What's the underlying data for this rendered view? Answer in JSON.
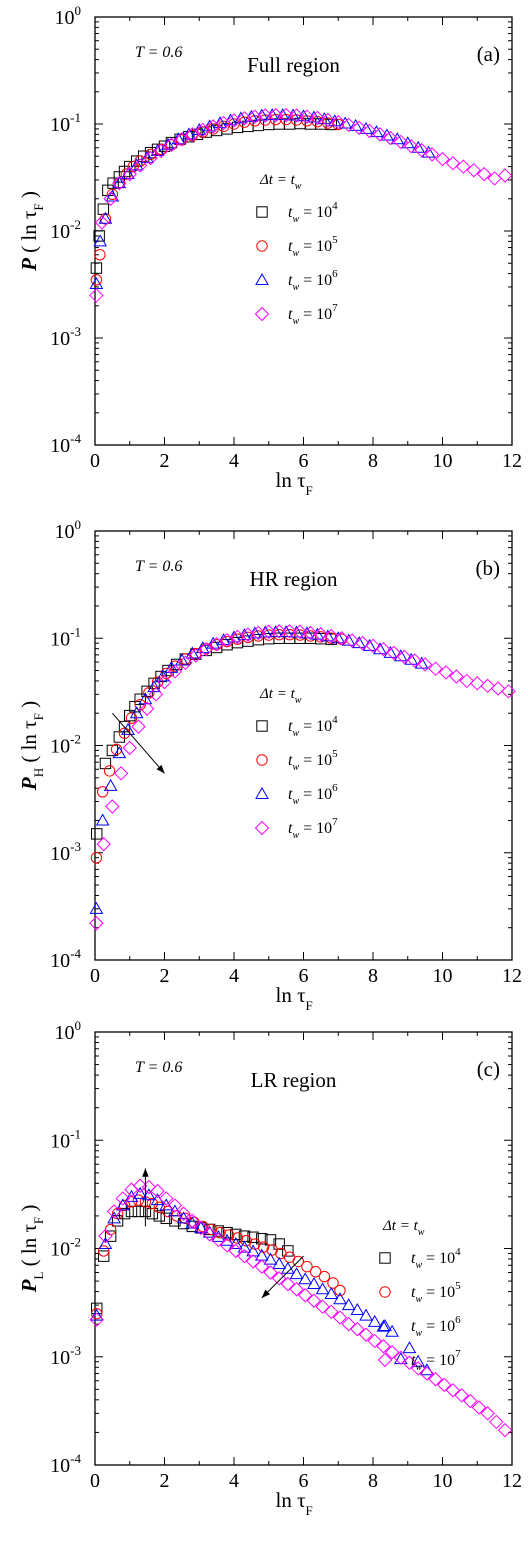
{
  "chart_data": [
    {
      "type": "scatter",
      "panel": "(a)",
      "title": "Full region",
      "temperature": "T = 0.6",
      "xlabel": "ln τF",
      "ylabel": "P ( ln τF )",
      "yscale": "log",
      "xlim": [
        0,
        12
      ],
      "ylim": [
        0.0001,
        1
      ],
      "xticks": [
        0,
        2,
        4,
        6,
        8,
        10,
        12
      ],
      "yticks": [
        0.0001,
        0.001,
        0.01,
        0.1,
        1
      ],
      "legend_title": "Δt = tw",
      "legend_position": "middle",
      "series": [
        {
          "name": "tw = 10^4",
          "marker": "square",
          "color": "#000000",
          "x": [
            0.04,
            0.12,
            0.24,
            0.37,
            0.52,
            0.7,
            0.85,
            1.0,
            1.2,
            1.4,
            1.6,
            1.8,
            2.0,
            2.2,
            2.45,
            2.7,
            2.95,
            3.2,
            3.5,
            3.8,
            4.1,
            4.4,
            4.7,
            5.0,
            5.3,
            5.6,
            5.9,
            6.2,
            6.5,
            6.8
          ],
          "y": [
            0.0045,
            0.009,
            0.016,
            0.024,
            0.028,
            0.032,
            0.036,
            0.04,
            0.045,
            0.05,
            0.054,
            0.058,
            0.062,
            0.067,
            0.072,
            0.076,
            0.08,
            0.084,
            0.087,
            0.09,
            0.093,
            0.095,
            0.097,
            0.099,
            0.1,
            0.1,
            0.101,
            0.1,
            0.1,
            0.099
          ]
        },
        {
          "name": "tw = 10^5",
          "marker": "circle",
          "color": "#ff0000",
          "x": [
            0.04,
            0.14,
            0.3,
            0.5,
            0.7,
            0.9,
            1.1,
            1.3,
            1.6,
            1.9,
            2.2,
            2.5,
            2.8,
            3.1,
            3.4,
            3.7,
            4.0,
            4.3,
            4.6,
            4.9,
            5.2,
            5.5,
            5.8,
            6.1,
            6.4,
            6.7,
            7.0
          ],
          "y": [
            0.0035,
            0.006,
            0.013,
            0.022,
            0.028,
            0.034,
            0.04,
            0.045,
            0.052,
            0.058,
            0.064,
            0.071,
            0.078,
            0.084,
            0.09,
            0.095,
            0.1,
            0.104,
            0.107,
            0.109,
            0.11,
            0.11,
            0.109,
            0.107,
            0.105,
            0.102,
            0.099
          ]
        },
        {
          "name": "tw = 10^6",
          "marker": "triangle",
          "color": "#0000ff",
          "x": [
            0.04,
            0.15,
            0.3,
            0.5,
            0.7,
            0.95,
            1.2,
            1.5,
            1.8,
            2.1,
            2.4,
            2.7,
            3.0,
            3.3,
            3.6,
            3.9,
            4.2,
            4.5,
            4.8,
            5.1,
            5.4,
            5.7,
            6.0,
            6.3,
            6.6,
            6.9,
            7.2,
            7.5,
            7.8,
            8.1,
            8.4,
            8.7,
            9.0,
            9.3,
            9.6
          ],
          "y": [
            0.0032,
            0.008,
            0.013,
            0.021,
            0.028,
            0.034,
            0.041,
            0.048,
            0.056,
            0.064,
            0.072,
            0.08,
            0.088,
            0.095,
            0.102,
            0.108,
            0.113,
            0.117,
            0.12,
            0.121,
            0.121,
            0.12,
            0.118,
            0.115,
            0.111,
            0.106,
            0.101,
            0.096,
            0.09,
            0.084,
            0.078,
            0.072,
            0.066,
            0.06,
            0.054
          ]
        },
        {
          "name": "tw = 10^7",
          "marker": "diamond",
          "color": "#ff00ff",
          "x": [
            0.04,
            0.2,
            0.45,
            0.7,
            1.0,
            1.3,
            1.6,
            1.9,
            2.2,
            2.5,
            2.8,
            3.1,
            3.4,
            3.7,
            4.0,
            4.3,
            4.6,
            4.9,
            5.2,
            5.5,
            5.8,
            6.1,
            6.4,
            6.7,
            7.0,
            7.3,
            7.6,
            7.9,
            8.2,
            8.5,
            8.8,
            9.1,
            9.4,
            9.7,
            10.0,
            10.3,
            10.6,
            10.9,
            11.2,
            11.5,
            11.8
          ],
          "y": [
            0.0025,
            0.012,
            0.02,
            0.028,
            0.034,
            0.041,
            0.048,
            0.056,
            0.064,
            0.072,
            0.08,
            0.088,
            0.095,
            0.102,
            0.108,
            0.113,
            0.117,
            0.12,
            0.121,
            0.121,
            0.12,
            0.117,
            0.114,
            0.109,
            0.104,
            0.098,
            0.092,
            0.086,
            0.08,
            0.074,
            0.068,
            0.062,
            0.057,
            0.052,
            0.047,
            0.043,
            0.04,
            0.037,
            0.034,
            0.031,
            0.033
          ]
        }
      ]
    },
    {
      "type": "scatter",
      "panel": "(b)",
      "title": "HR region",
      "temperature": "T = 0.6",
      "xlabel": "ln τF",
      "ylabel": "PH ( ln τF )",
      "yscale": "log",
      "xlim": [
        0,
        12
      ],
      "ylim": [
        0.0001,
        1
      ],
      "xticks": [
        0,
        2,
        4,
        6,
        8,
        10,
        12
      ],
      "yticks": [
        0.0001,
        0.001,
        0.01,
        0.1,
        1
      ],
      "legend_title": "Δt = tw",
      "legend_position": "middle",
      "series": [
        {
          "name": "tw = 10^4",
          "marker": "square",
          "color": "#000000",
          "x": [
            0.05,
            0.3,
            0.5,
            0.7,
            0.85,
            1.0,
            1.15,
            1.3,
            1.5,
            1.7,
            1.9,
            2.1,
            2.35,
            2.6,
            2.9,
            3.2,
            3.5,
            3.8,
            4.1,
            4.4,
            4.7,
            5.0,
            5.3,
            5.6,
            5.9,
            6.2,
            6.5,
            6.8
          ],
          "y": [
            0.0015,
            0.0068,
            0.009,
            0.012,
            0.015,
            0.019,
            0.023,
            0.027,
            0.032,
            0.038,
            0.044,
            0.05,
            0.057,
            0.064,
            0.071,
            0.077,
            0.082,
            0.087,
            0.091,
            0.094,
            0.097,
            0.099,
            0.1,
            0.1,
            0.1,
            0.1,
            0.099,
            0.098
          ]
        },
        {
          "name": "tw = 10^5",
          "marker": "circle",
          "color": "#ff0000",
          "x": [
            0.04,
            0.22,
            0.42,
            0.62,
            0.85,
            1.05,
            1.3,
            1.55,
            1.8,
            2.05,
            2.3,
            2.6,
            2.9,
            3.2,
            3.5,
            3.8,
            4.1,
            4.4,
            4.7,
            5.0,
            5.3,
            5.6,
            5.9,
            6.2,
            6.5,
            6.8,
            7.1
          ],
          "y": [
            0.0009,
            0.0037,
            0.0058,
            0.0092,
            0.013,
            0.018,
            0.024,
            0.031,
            0.039,
            0.047,
            0.055,
            0.064,
            0.072,
            0.08,
            0.087,
            0.093,
            0.098,
            0.102,
            0.105,
            0.107,
            0.108,
            0.108,
            0.107,
            0.105,
            0.103,
            0.1,
            0.098
          ]
        },
        {
          "name": "tw = 10^6",
          "marker": "triangle",
          "color": "#0000ff",
          "x": [
            0.04,
            0.22,
            0.45,
            0.7,
            0.95,
            1.2,
            1.45,
            1.7,
            1.95,
            2.2,
            2.5,
            2.8,
            3.1,
            3.4,
            3.7,
            4.0,
            4.3,
            4.6,
            4.9,
            5.2,
            5.5,
            5.8,
            6.1,
            6.4,
            6.7,
            7.0,
            7.3,
            7.6,
            7.9,
            8.2,
            8.5,
            8.8,
            9.1,
            9.4
          ],
          "y": [
            0.0003,
            0.002,
            0.0042,
            0.0085,
            0.014,
            0.02,
            0.027,
            0.035,
            0.044,
            0.053,
            0.062,
            0.072,
            0.081,
            0.089,
            0.096,
            0.102,
            0.107,
            0.111,
            0.113,
            0.114,
            0.114,
            0.113,
            0.111,
            0.108,
            0.104,
            0.1,
            0.095,
            0.09,
            0.085,
            0.079,
            0.073,
            0.068,
            0.063,
            0.058
          ]
        },
        {
          "name": "tw = 10^7",
          "marker": "diamond",
          "color": "#ff00ff",
          "x": [
            0.04,
            0.25,
            0.5,
            0.75,
            1.0,
            1.25,
            1.5,
            1.75,
            2.0,
            2.3,
            2.6,
            2.9,
            3.2,
            3.5,
            3.8,
            4.1,
            4.4,
            4.7,
            5.0,
            5.3,
            5.6,
            5.9,
            6.2,
            6.5,
            6.8,
            7.1,
            7.4,
            7.7,
            8.0,
            8.3,
            8.6,
            8.9,
            9.2,
            9.5,
            9.8,
            10.1,
            10.4,
            10.7,
            11.0,
            11.3,
            11.6,
            11.9
          ],
          "y": [
            0.00022,
            0.0012,
            0.0027,
            0.0055,
            0.0095,
            0.015,
            0.022,
            0.03,
            0.039,
            0.049,
            0.059,
            0.069,
            0.079,
            0.088,
            0.096,
            0.103,
            0.108,
            0.112,
            0.115,
            0.116,
            0.116,
            0.115,
            0.112,
            0.109,
            0.105,
            0.1,
            0.095,
            0.09,
            0.085,
            0.079,
            0.073,
            0.067,
            0.062,
            0.057,
            0.052,
            0.048,
            0.044,
            0.04,
            0.038,
            0.036,
            0.034,
            0.032
          ]
        }
      ]
    },
    {
      "type": "scatter",
      "panel": "(c)",
      "title": "LR region",
      "temperature": "T = 0.6",
      "xlabel": "ln τF",
      "ylabel": "PL ( ln τF )",
      "yscale": "log",
      "xlim": [
        0,
        12
      ],
      "ylim": [
        0.0001,
        1
      ],
      "xticks": [
        0,
        2,
        4,
        6,
        8,
        10,
        12
      ],
      "yticks": [
        0.0001,
        0.001,
        0.01,
        0.1,
        1
      ],
      "legend_title": "Δt = tw",
      "legend_position": "right",
      "series": [
        {
          "name": "tw = 10^4",
          "marker": "square",
          "color": "#000000",
          "x": [
            0.05,
            0.25,
            0.45,
            0.65,
            0.85,
            1.05,
            1.25,
            1.45,
            1.65,
            1.85,
            2.05,
            2.3,
            2.55,
            2.8,
            3.05,
            3.3,
            3.55,
            3.8,
            4.05,
            4.3,
            4.55,
            4.8,
            5.05,
            5.3,
            5.55
          ],
          "y": [
            0.0028,
            0.0085,
            0.013,
            0.018,
            0.021,
            0.022,
            0.022,
            0.022,
            0.021,
            0.02,
            0.019,
            0.018,
            0.017,
            0.016,
            0.0155,
            0.015,
            0.0145,
            0.014,
            0.0135,
            0.013,
            0.0127,
            0.0123,
            0.012,
            0.011,
            0.0095
          ]
        },
        {
          "name": "tw = 10^5",
          "marker": "circle",
          "color": "#ff0000",
          "x": [
            0.05,
            0.25,
            0.45,
            0.65,
            0.85,
            1.05,
            1.25,
            1.45,
            1.65,
            1.85,
            2.1,
            2.35,
            2.6,
            2.85,
            3.1,
            3.35,
            3.6,
            3.85,
            4.1,
            4.35,
            4.6,
            4.85,
            5.1,
            5.35,
            5.6,
            5.85,
            6.1,
            6.35,
            6.6,
            6.85,
            7.05
          ],
          "y": [
            0.0025,
            0.0095,
            0.015,
            0.021,
            0.025,
            0.027,
            0.028,
            0.027,
            0.026,
            0.024,
            0.022,
            0.02,
            0.019,
            0.0175,
            0.016,
            0.015,
            0.014,
            0.0133,
            0.0125,
            0.0118,
            0.011,
            0.0103,
            0.0097,
            0.009,
            0.0083,
            0.0076,
            0.0068,
            0.0061,
            0.0055,
            0.0048,
            0.0041
          ]
        },
        {
          "name": "tw = 10^6",
          "marker": "triangle",
          "color": "#0000ff",
          "x": [
            0.05,
            0.3,
            0.55,
            0.8,
            1.05,
            1.3,
            1.55,
            1.8,
            2.05,
            2.3,
            2.55,
            2.8,
            3.05,
            3.3,
            3.55,
            3.8,
            4.05,
            4.3,
            4.55,
            4.8,
            5.05,
            5.3,
            5.55,
            5.8,
            6.05,
            6.3,
            6.55,
            6.8,
            7.05,
            7.3,
            7.55,
            7.8,
            8.05,
            8.3,
            8.55,
            8.8,
            9.05,
            9.3,
            9.55
          ],
          "y": [
            0.0024,
            0.011,
            0.019,
            0.025,
            0.03,
            0.032,
            0.031,
            0.028,
            0.025,
            0.022,
            0.019,
            0.017,
            0.0155,
            0.014,
            0.0128,
            0.0118,
            0.011,
            0.0102,
            0.0094,
            0.0086,
            0.0079,
            0.0072,
            0.0065,
            0.0058,
            0.0052,
            0.0047,
            0.0042,
            0.0038,
            0.0034,
            0.003,
            0.0027,
            0.0024,
            0.0021,
            0.0019,
            0.0017,
            0.00095,
            0.0012,
            0.0009,
            0.00075
          ]
        },
        {
          "name": "tw = 10^7",
          "marker": "diamond",
          "color": "#ff00ff",
          "x": [
            0.05,
            0.3,
            0.55,
            0.8,
            1.05,
            1.3,
            1.55,
            1.8,
            2.05,
            2.3,
            2.55,
            2.8,
            3.05,
            3.3,
            3.55,
            3.8,
            4.05,
            4.3,
            4.55,
            4.8,
            5.05,
            5.3,
            5.55,
            5.8,
            6.05,
            6.3,
            6.55,
            6.8,
            7.05,
            7.3,
            7.55,
            7.8,
            8.05,
            8.3,
            8.55,
            8.8,
            9.05,
            9.3,
            9.55,
            9.8,
            10.05,
            10.3,
            10.55,
            10.8,
            11.05,
            11.3,
            11.55,
            11.8
          ],
          "y": [
            0.0022,
            0.013,
            0.022,
            0.029,
            0.035,
            0.038,
            0.037,
            0.034,
            0.029,
            0.025,
            0.021,
            0.018,
            0.0155,
            0.0135,
            0.012,
            0.0107,
            0.0095,
            0.0085,
            0.0076,
            0.0068,
            0.006,
            0.0053,
            0.0047,
            0.0042,
            0.0037,
            0.0033,
            0.0029,
            0.0026,
            0.0023,
            0.002,
            0.0018,
            0.0016,
            0.0014,
            0.00125,
            0.0011,
            0.00098,
            0.00088,
            0.00078,
            0.0007,
            0.00062,
            0.00055,
            0.00049,
            0.00044,
            0.00039,
            0.00034,
            0.0003,
            0.00025,
            0.00021
          ]
        }
      ]
    }
  ]
}
